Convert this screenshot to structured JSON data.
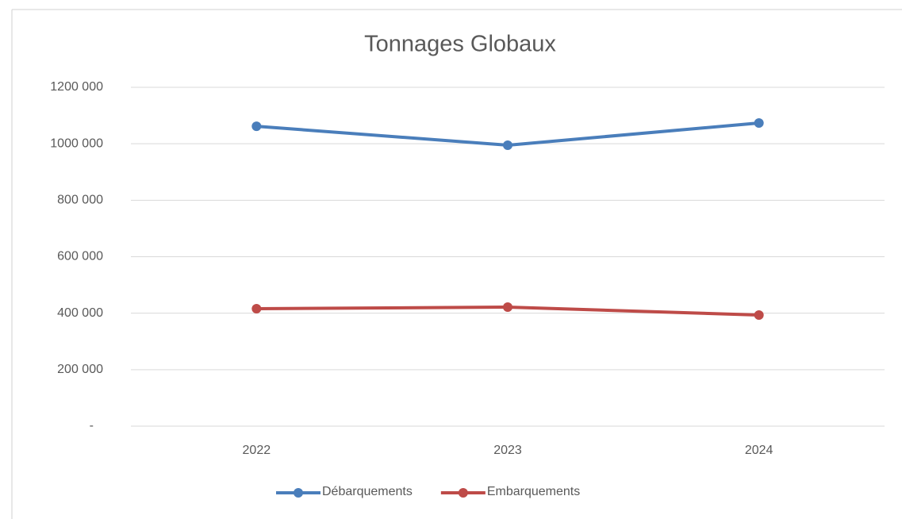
{
  "chart_data": {
    "type": "line",
    "title": "Tonnages Globaux",
    "categories": [
      "2022",
      "2023",
      "2024"
    ],
    "series": [
      {
        "name": "Débarquements",
        "color": "#4a7ebb",
        "values": [
          1062000,
          995000,
          1073500
        ]
      },
      {
        "name": "Embarquements",
        "color": "#be4b48",
        "values": [
          416000,
          421500,
          393400
        ]
      }
    ],
    "ylim": [
      0,
      1200000
    ],
    "yticks": [
      {
        "value": 0,
        "label": "-"
      },
      {
        "value": 200000,
        "label": "200 000"
      },
      {
        "value": 400000,
        "label": "400 000"
      },
      {
        "value": 600000,
        "label": "600 000"
      },
      {
        "value": 800000,
        "label": "800 000"
      },
      {
        "value": 1000000,
        "label": "1000 000"
      },
      {
        "value": 1200000,
        "label": "1200 000"
      }
    ],
    "grid": true,
    "legend": "bottom"
  }
}
